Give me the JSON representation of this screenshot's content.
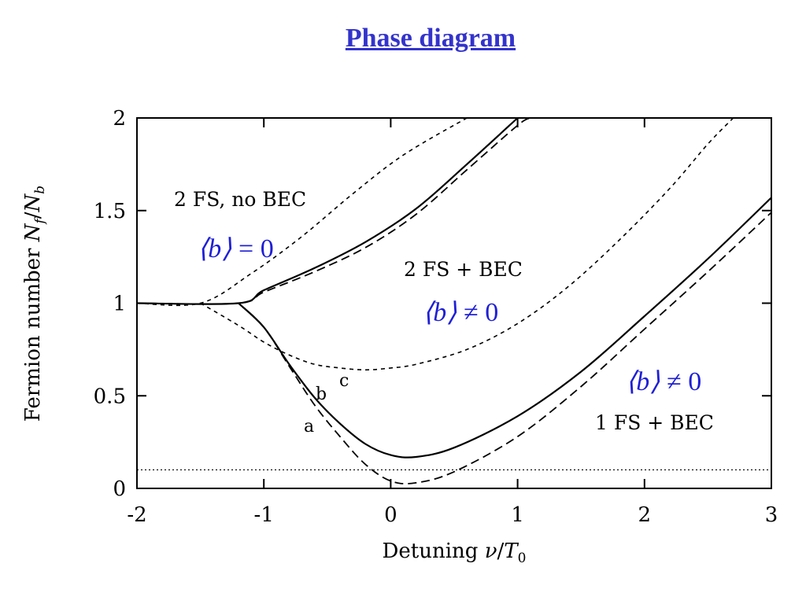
{
  "slide": {
    "title": "Phase diagram"
  },
  "colors": {
    "title": "#3333cc",
    "annotation": "#1f1fd6",
    "line": "#000000"
  },
  "chart_data": {
    "type": "line",
    "title": "",
    "xlabel": "Detuning ν/T₀",
    "ylabel": "Fermion number N_f/N_b",
    "xlim": [
      -2,
      3
    ],
    "ylim": [
      0,
      2
    ],
    "xticks": [
      "-2",
      "-1",
      "0",
      "1",
      "2",
      "3"
    ],
    "yticks": [
      "0",
      "0.5",
      "1",
      "1.5",
      "2"
    ],
    "legend": "none",
    "grid": false,
    "regions": [
      {
        "text": "2 FS, no BEC"
      },
      {
        "text": "2 FS + BEC"
      },
      {
        "text": "1 FS + BEC"
      }
    ],
    "annotations": [
      {
        "left": "⟨b⟩",
        "op": "=",
        "right": "0"
      },
      {
        "left": "⟨b⟩",
        "op": "≠",
        "right": "0"
      },
      {
        "left": "⟨b⟩",
        "op": "≠",
        "right": "0"
      }
    ],
    "series": [
      {
        "name": "",
        "style": "solid",
        "x": [
          -2,
          -1.2,
          -1.0,
          -0.6,
          -0.2,
          0.2,
          0.6,
          1.0
        ],
        "y": [
          1.0,
          1.0,
          1.07,
          1.19,
          1.33,
          1.51,
          1.75,
          2.0
        ]
      },
      {
        "name": "",
        "style": "long-dash",
        "x": [
          -2,
          -1.2,
          -1.0,
          -0.6,
          -0.2,
          0.2,
          0.6,
          1.0,
          1.1
        ],
        "y": [
          1.0,
          1.0,
          1.06,
          1.17,
          1.3,
          1.48,
          1.72,
          1.96,
          2.0
        ]
      },
      {
        "name": "",
        "style": "short-dash",
        "x": [
          -2,
          -1.5,
          -1.1,
          -0.7,
          -0.3,
          0.1,
          0.6
        ],
        "y": [
          1.0,
          1.0,
          1.16,
          1.36,
          1.59,
          1.8,
          2.0
        ]
      },
      {
        "name": "b",
        "style": "solid",
        "x": [
          -1.2,
          -1.0,
          -0.8,
          -0.6,
          -0.4,
          -0.2,
          0.0,
          0.2,
          0.5,
          1.0,
          1.5,
          2.0,
          2.5,
          3.0
        ],
        "y": [
          1.0,
          0.87,
          0.67,
          0.49,
          0.35,
          0.24,
          0.18,
          0.17,
          0.22,
          0.39,
          0.63,
          0.93,
          1.24,
          1.57
        ]
      },
      {
        "name": "a",
        "style": "long-dash",
        "x": [
          -1.2,
          -1.0,
          -0.8,
          -0.6,
          -0.4,
          -0.2,
          0.0,
          0.2,
          0.5,
          1.0,
          1.5,
          2.0,
          2.5,
          3.0
        ],
        "y": [
          1.0,
          0.87,
          0.66,
          0.45,
          0.28,
          0.13,
          0.04,
          0.03,
          0.09,
          0.28,
          0.55,
          0.86,
          1.17,
          1.49
        ]
      },
      {
        "name": "c",
        "style": "short-dash",
        "x": [
          -1.5,
          -1.2,
          -1.0,
          -0.8,
          -0.6,
          -0.4,
          -0.2,
          0.0,
          0.2,
          0.6,
          1.0,
          1.4,
          1.8,
          2.2,
          2.5,
          2.7
        ],
        "y": [
          1.0,
          0.88,
          0.79,
          0.72,
          0.67,
          0.65,
          0.64,
          0.65,
          0.67,
          0.75,
          0.89,
          1.09,
          1.34,
          1.62,
          1.86,
          2.0
        ]
      },
      {
        "name": "",
        "style": "dotted",
        "x": [
          -2,
          3
        ],
        "y": [
          0.1,
          0.1
        ]
      }
    ]
  }
}
